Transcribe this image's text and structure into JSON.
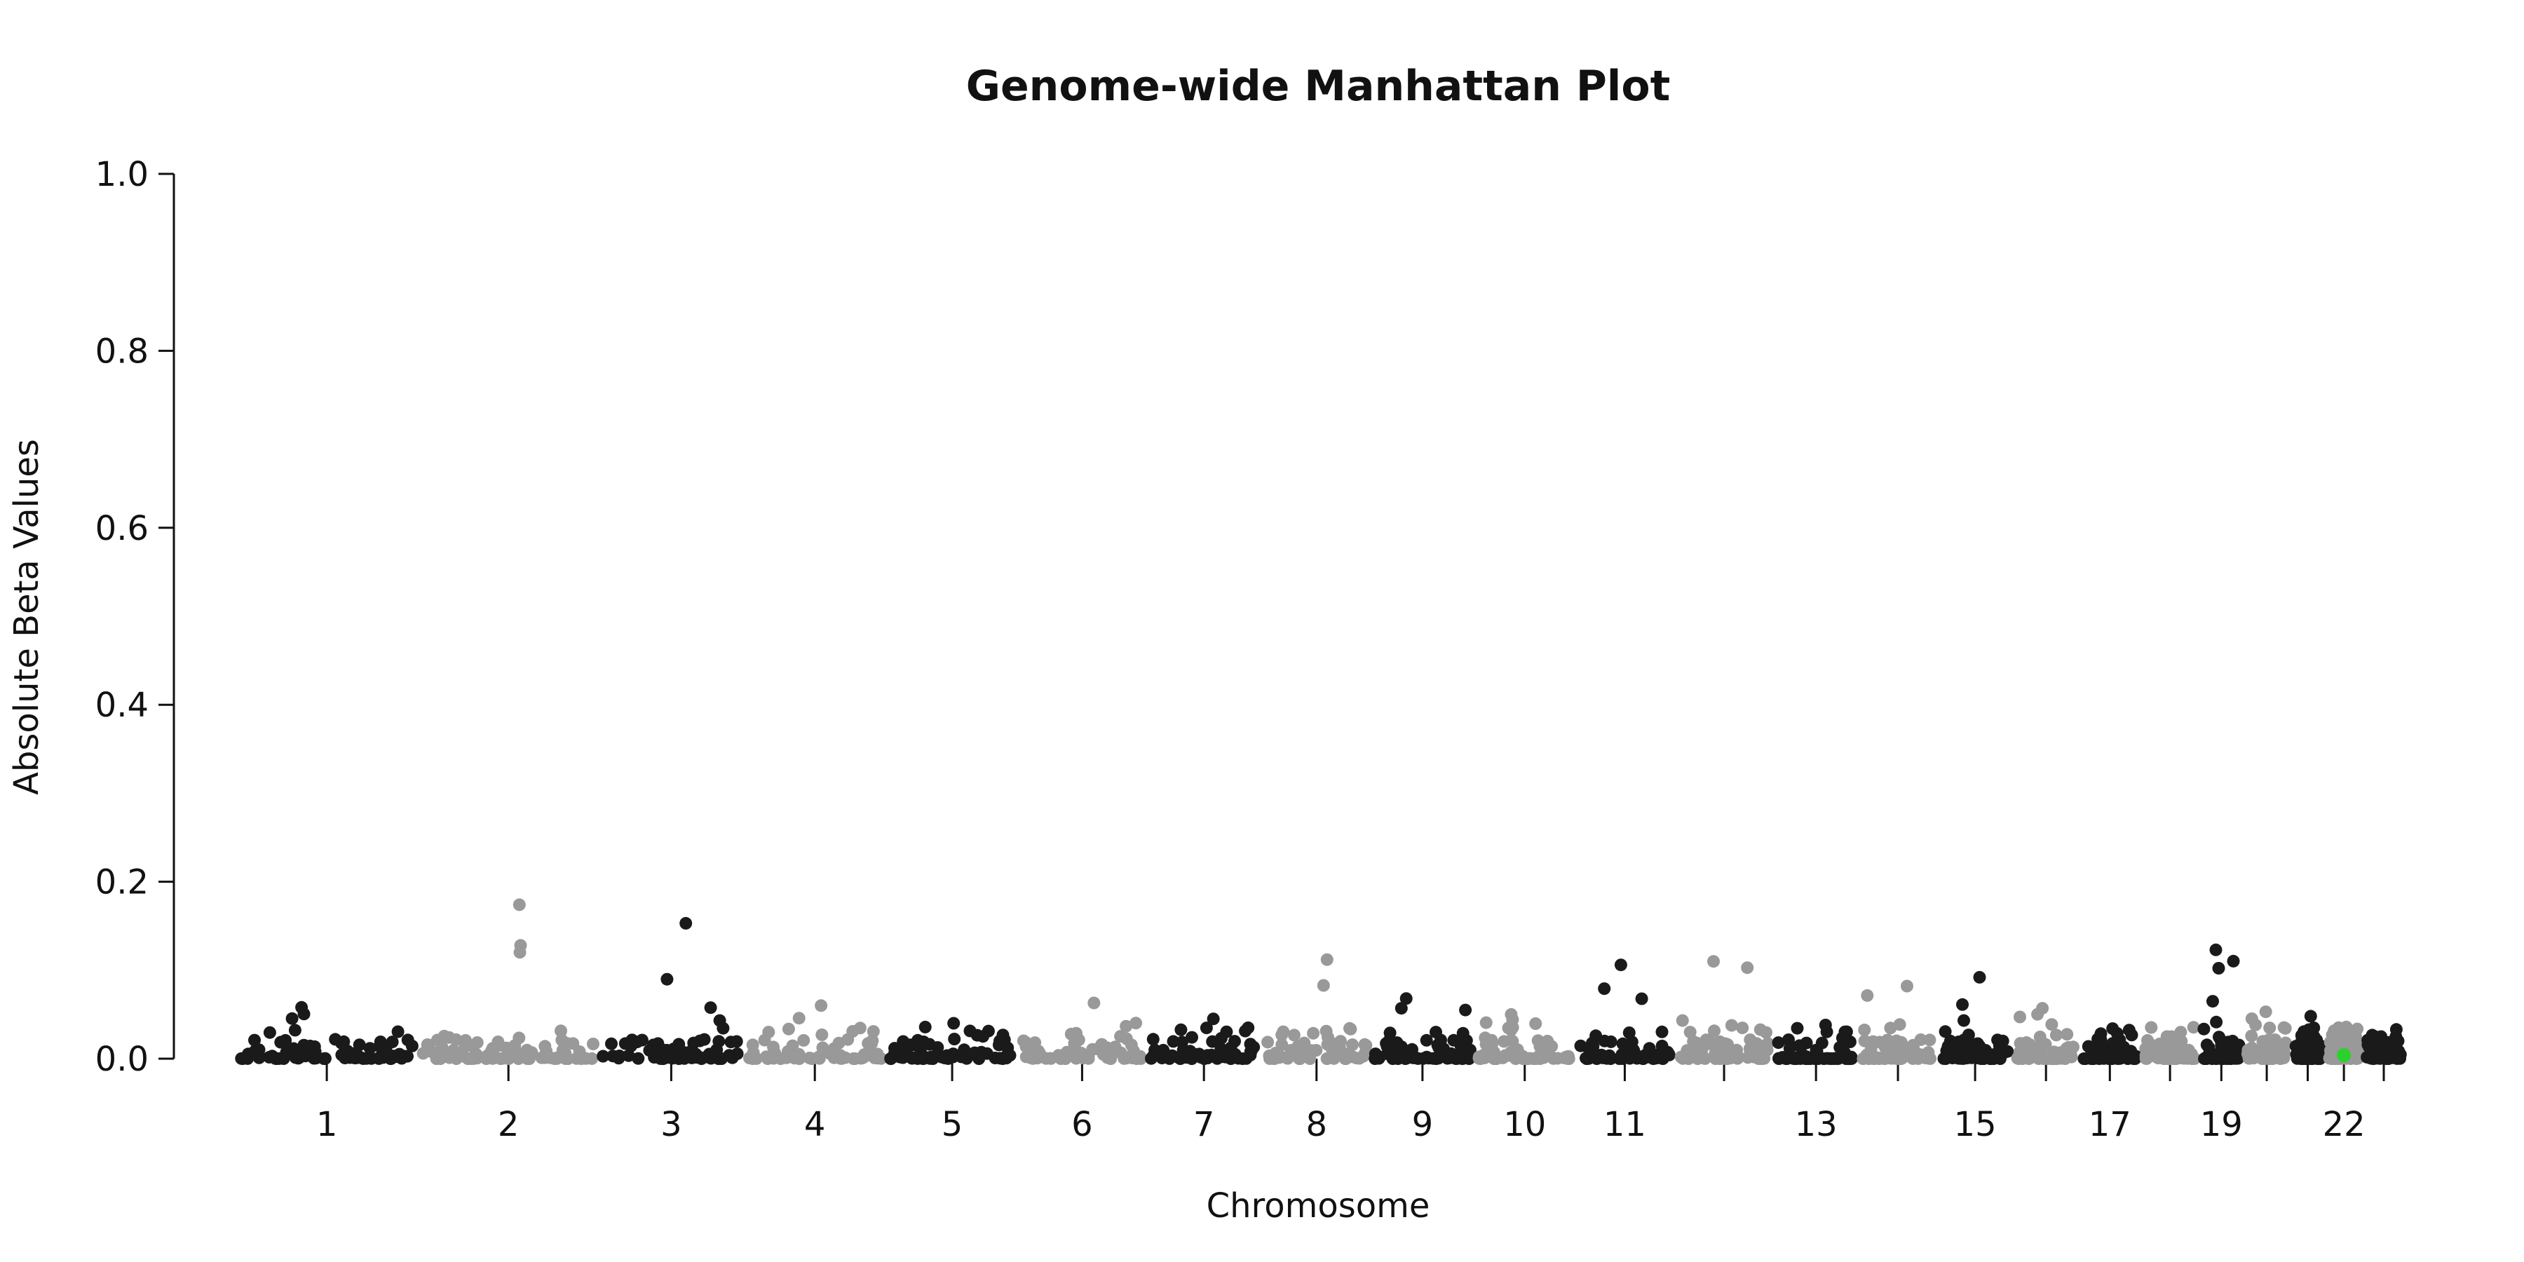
{
  "chart_data": {
    "type": "scatter",
    "title": "Genome-wide Manhattan Plot",
    "xlabel": "Chromosome",
    "ylabel": "Absolute Beta Values",
    "ylim": [
      0,
      1.0
    ],
    "yticks": [
      "0.0",
      "0.2",
      "0.4",
      "0.6",
      "0.8",
      "1.0"
    ],
    "grid": false,
    "colors": {
      "odd": "#1a1a1a",
      "even": "#999999",
      "highlight": "#2bd12b"
    },
    "chromosomes": [
      {
        "chr": "1",
        "label": "1",
        "peak": 0.058
      },
      {
        "chr": "2",
        "label": "2",
        "peak": 0.174
      },
      {
        "chr": "3",
        "label": "3",
        "peak": 0.153
      },
      {
        "chr": "4",
        "label": "4",
        "peak": 0.06
      },
      {
        "chr": "5",
        "label": "5",
        "peak": 0.04
      },
      {
        "chr": "6",
        "label": "6",
        "peak": 0.063
      },
      {
        "chr": "7",
        "label": "7",
        "peak": 0.045
      },
      {
        "chr": "8",
        "label": "8",
        "peak": 0.112
      },
      {
        "chr": "9",
        "label": "9",
        "peak": 0.068
      },
      {
        "chr": "10",
        "label": "10",
        "peak": 0.05
      },
      {
        "chr": "11",
        "label": "11",
        "peak": 0.106
      },
      {
        "chr": "12",
        "label": "",
        "peak": 0.11
      },
      {
        "chr": "13",
        "label": "13",
        "peak": 0.038
      },
      {
        "chr": "14",
        "label": "",
        "peak": 0.082
      },
      {
        "chr": "15",
        "label": "15",
        "peak": 0.092
      },
      {
        "chr": "16",
        "label": "",
        "peak": 0.057
      },
      {
        "chr": "17",
        "label": "17",
        "peak": 0.034
      },
      {
        "chr": "18",
        "label": "",
        "peak": 0.03
      },
      {
        "chr": "19",
        "label": "19",
        "peak": 0.123
      },
      {
        "chr": "20",
        "label": "",
        "peak": 0.053
      },
      {
        "chr": "21",
        "label": "",
        "peak": 0.048
      },
      {
        "chr": "22",
        "label": "22",
        "peak": 0.035
      },
      {
        "chr": "23",
        "label": "",
        "peak": 0.018
      }
    ],
    "highlighted_points": [
      {
        "chr": "22",
        "y": 0.004
      }
    ]
  }
}
